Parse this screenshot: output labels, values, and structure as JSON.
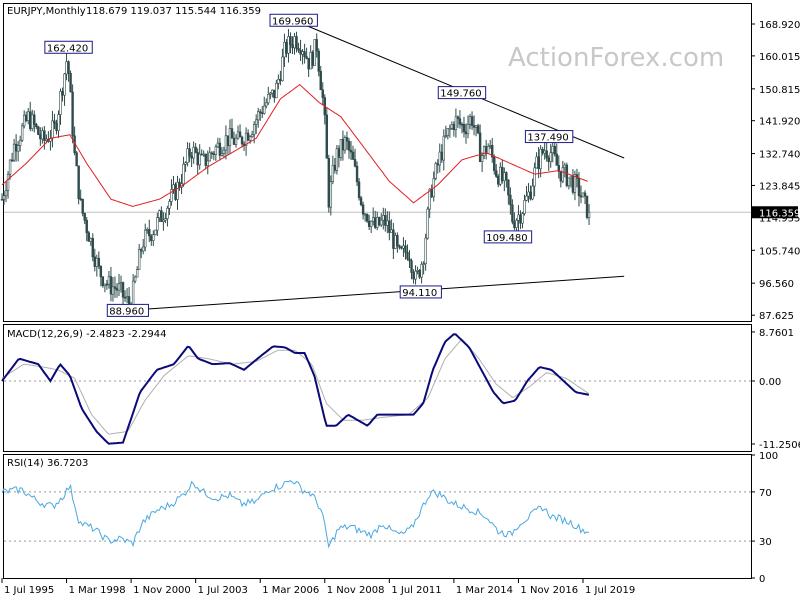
{
  "header": {
    "symbol": "EURJPY,Monthly",
    "ohlc": "118.679 119.037 115.544 116.359"
  },
  "watermark": "ActionForex.com",
  "colors": {
    "candle": "#2e4a4a",
    "ma": "#e02020",
    "macd": "#0a0a78",
    "signal": "#b0b0b0",
    "rsi": "#4aa8e0",
    "trendline": "#000000"
  },
  "chart_data": [
    {
      "type": "candlestick",
      "title": "EURJPY,Monthly",
      "x_start": 1995.5,
      "x_step_months": 1,
      "ylim": [
        86.0,
        174.5
      ],
      "y_ticks": [
        "168.920",
        "160.015",
        "150.815",
        "141.920",
        "132.740",
        "123.845",
        "114.935",
        "105.740",
        "96.560",
        "87.625"
      ],
      "y_tick_values": [
        168.92,
        160.015,
        150.815,
        141.92,
        132.74,
        123.845,
        114.935,
        105.74,
        96.56,
        87.625
      ],
      "last_price": "116.359",
      "last_price_value": 116.359,
      "x_ticks": [
        "1 Jul 1995",
        "1 Mar 1998",
        "1 Nov 2000",
        "1 Jul 2003",
        "1 Mar 2006",
        "1 Nov 2008",
        "1 Jul 2011",
        "1 Mar 2014",
        "1 Nov 2016",
        "1 Jul 2019"
      ],
      "x_tick_values": [
        1995.5,
        1998.167,
        2000.833,
        2003.5,
        2006.167,
        2008.833,
        2011.5,
        2014.167,
        2016.833,
        2019.5
      ],
      "price_anchors": [
        [
          1995.5,
          120
        ],
        [
          1996.0,
          135
        ],
        [
          1996.6,
          143
        ],
        [
          1997.2,
          136
        ],
        [
          1997.7,
          140
        ],
        [
          1998.0,
          152
        ],
        [
          1998.2,
          160
        ],
        [
          1998.5,
          132
        ],
        [
          1998.75,
          118
        ],
        [
          1999.1,
          110
        ],
        [
          1999.5,
          100
        ],
        [
          1999.9,
          96
        ],
        [
          2000.3,
          95
        ],
        [
          2000.8,
          90
        ],
        [
          2001.3,
          108
        ],
        [
          2001.8,
          112
        ],
        [
          2002.3,
          118
        ],
        [
          2002.8,
          124
        ],
        [
          2003.3,
          134
        ],
        [
          2003.8,
          130
        ],
        [
          2004.3,
          134
        ],
        [
          2004.8,
          137
        ],
        [
          2005.3,
          136
        ],
        [
          2005.8,
          140
        ],
        [
          2006.3,
          146
        ],
        [
          2006.8,
          150
        ],
        [
          2007.2,
          162
        ],
        [
          2007.6,
          165
        ],
        [
          2007.9,
          163
        ],
        [
          2008.2,
          158
        ],
        [
          2008.5,
          163
        ],
        [
          2008.8,
          145
        ],
        [
          2009.0,
          120
        ],
        [
          2009.3,
          132
        ],
        [
          2009.7,
          136
        ],
        [
          2010.0,
          130
        ],
        [
          2010.4,
          118
        ],
        [
          2010.9,
          112
        ],
        [
          2011.3,
          114
        ],
        [
          2011.6,
          110
        ],
        [
          2011.9,
          104
        ],
        [
          2012.3,
          106
        ],
        [
          2012.6,
          97
        ],
        [
          2012.9,
          104
        ],
        [
          2013.2,
          122
        ],
        [
          2013.6,
          132
        ],
        [
          2013.9,
          138
        ],
        [
          2014.2,
          142
        ],
        [
          2014.6,
          140
        ],
        [
          2014.9,
          143
        ],
        [
          2015.3,
          132
        ],
        [
          2015.6,
          135
        ],
        [
          2015.9,
          128
        ],
        [
          2016.3,
          124
        ],
        [
          2016.6,
          114
        ],
        [
          2016.9,
          116
        ],
        [
          2017.3,
          122
        ],
        [
          2017.6,
          130
        ],
        [
          2017.9,
          134
        ],
        [
          2018.2,
          133
        ],
        [
          2018.5,
          128
        ],
        [
          2018.9,
          126
        ],
        [
          2019.3,
          123
        ],
        [
          2019.6,
          118
        ],
        [
          2019.75,
          116.359
        ]
      ],
      "ma_anchors": [
        [
          1995.5,
          124
        ],
        [
          1996.5,
          130
        ],
        [
          1997.5,
          137
        ],
        [
          1998.3,
          138
        ],
        [
          1999.0,
          130
        ],
        [
          2000.0,
          120
        ],
        [
          2000.9,
          118
        ],
        [
          2002.0,
          120
        ],
        [
          2003.0,
          124
        ],
        [
          2004.0,
          129
        ],
        [
          2005.0,
          133
        ],
        [
          2006.0,
          137
        ],
        [
          2007.0,
          148
        ],
        [
          2007.8,
          152
        ],
        [
          2008.6,
          147
        ],
        [
          2009.5,
          143
        ],
        [
          2010.5,
          134
        ],
        [
          2011.5,
          125
        ],
        [
          2012.5,
          119
        ],
        [
          2013.5,
          124
        ],
        [
          2014.5,
          131
        ],
        [
          2015.5,
          133
        ],
        [
          2016.5,
          130
        ],
        [
          2017.5,
          127
        ],
        [
          2018.5,
          128
        ],
        [
          2019.7,
          125
        ]
      ],
      "annotations": [
        {
          "label": "169.960",
          "x": 2007.55,
          "y": 169.96
        },
        {
          "label": "162.420",
          "x": 1998.25,
          "y": 162.42
        },
        {
          "label": "149.760",
          "x": 2014.5,
          "y": 149.76
        },
        {
          "label": "137.490",
          "x": 2018.1,
          "y": 137.49
        },
        {
          "label": "109.480",
          "x": 2016.4,
          "y": 109.48
        },
        {
          "label": "94.110",
          "x": 2012.8,
          "y": 94.11
        },
        {
          "label": "88.960",
          "x": 2000.7,
          "y": 88.96
        }
      ],
      "trendlines": [
        {
          "name": "upper",
          "from": [
            2007.55,
            169.96
          ],
          "to": [
            2021.2,
            131.5
          ]
        },
        {
          "name": "lower",
          "from": [
            2000.7,
            88.96
          ],
          "to": [
            2021.2,
            98.5
          ]
        }
      ]
    },
    {
      "type": "line",
      "title": "MACD(12,26,9) -2.4823 -2.2944",
      "ylim": [
        -12.5,
        10.0
      ],
      "y_ticks": [
        "8.7601",
        "0.00",
        "-11.2506"
      ],
      "y_tick_values": [
        8.7601,
        0.0,
        -11.2506
      ],
      "zero_line": 0,
      "series": [
        {
          "values_at": [
            [
              1995.5,
              0
            ],
            [
              1996.2,
              4
            ],
            [
              1997.0,
              3
            ],
            [
              1997.5,
              0
            ],
            [
              1997.9,
              3
            ],
            [
              1998.3,
              1
            ],
            [
              1998.8,
              -5
            ],
            [
              1999.4,
              -9
            ],
            [
              1999.9,
              -11.2
            ],
            [
              2000.5,
              -11
            ],
            [
              2001.2,
              -2
            ],
            [
              2001.9,
              2
            ],
            [
              2002.6,
              3
            ],
            [
              2003.2,
              6.3
            ],
            [
              2003.6,
              4
            ],
            [
              2004.2,
              3
            ],
            [
              2004.9,
              3.2
            ],
            [
              2005.5,
              2
            ],
            [
              2006.2,
              4.5
            ],
            [
              2006.7,
              6.2
            ],
            [
              2007.2,
              6
            ],
            [
              2007.6,
              5
            ],
            [
              2008.0,
              5
            ],
            [
              2008.4,
              1
            ],
            [
              2008.9,
              -8
            ],
            [
              2009.3,
              -8
            ],
            [
              2009.8,
              -6
            ],
            [
              2010.2,
              -7
            ],
            [
              2010.6,
              -8
            ],
            [
              2011.0,
              -6
            ],
            [
              2011.5,
              -6
            ],
            [
              2012.0,
              -6
            ],
            [
              2012.5,
              -6
            ],
            [
              2012.9,
              -4
            ],
            [
              2013.3,
              2
            ],
            [
              2013.8,
              7
            ],
            [
              2014.2,
              8.5
            ],
            [
              2014.8,
              6
            ],
            [
              2015.3,
              2
            ],
            [
              2015.8,
              -2
            ],
            [
              2016.2,
              -4
            ],
            [
              2016.7,
              -3.5
            ],
            [
              2017.2,
              0
            ],
            [
              2017.7,
              2.5
            ],
            [
              2018.2,
              2
            ],
            [
              2018.7,
              0
            ],
            [
              2019.2,
              -2
            ],
            [
              2019.75,
              -2.4823
            ]
          ]
        },
        {
          "values_at": [
            [
              1995.5,
              0.5
            ],
            [
              1996.4,
              3
            ],
            [
              1997.2,
              2.5
            ],
            [
              1997.8,
              2
            ],
            [
              1998.5,
              0.5
            ],
            [
              1999.2,
              -6
            ],
            [
              1999.9,
              -9.5
            ],
            [
              2000.7,
              -9
            ],
            [
              2001.4,
              -3.5
            ],
            [
              2002.2,
              1
            ],
            [
              2003.2,
              4.5
            ],
            [
              2004.0,
              4
            ],
            [
              2005.0,
              3
            ],
            [
              2006.0,
              3.5
            ],
            [
              2006.9,
              5.5
            ],
            [
              2007.6,
              5.5
            ],
            [
              2008.3,
              3
            ],
            [
              2008.9,
              -4
            ],
            [
              2009.6,
              -7
            ],
            [
              2010.4,
              -7
            ],
            [
              2011.2,
              -6.5
            ],
            [
              2012.3,
              -6
            ],
            [
              2013.1,
              -3
            ],
            [
              2013.8,
              4
            ],
            [
              2014.5,
              7.5
            ],
            [
              2015.2,
              4
            ],
            [
              2015.9,
              -0.5
            ],
            [
              2016.6,
              -3
            ],
            [
              2017.3,
              -1
            ],
            [
              2018.0,
              1.5
            ],
            [
              2018.8,
              0.5
            ],
            [
              2019.75,
              -2.2944
            ]
          ]
        }
      ]
    },
    {
      "type": "line",
      "title": "RSI(14) 36.7203",
      "ylim": [
        0,
        100
      ],
      "y_ticks": [
        "100",
        "70",
        "30",
        "0"
      ],
      "y_tick_values": [
        100,
        70,
        30,
        0
      ],
      "levels": [
        70,
        30
      ],
      "series": [
        {
          "values_at": [
            [
              1995.5,
              70
            ],
            [
              1996.3,
              72
            ],
            [
              1997.0,
              62
            ],
            [
              1997.6,
              58
            ],
            [
              1998.0,
              66
            ],
            [
              1998.3,
              75
            ],
            [
              1998.7,
              45
            ],
            [
              1999.3,
              40
            ],
            [
              1999.9,
              30
            ],
            [
              2000.4,
              32
            ],
            [
              2000.9,
              28
            ],
            [
              2001.3,
              45
            ],
            [
              2001.9,
              55
            ],
            [
              2002.5,
              60
            ],
            [
              2003.0,
              68
            ],
            [
              2003.4,
              78
            ],
            [
              2003.8,
              70
            ],
            [
              2004.3,
              65
            ],
            [
              2004.9,
              67
            ],
            [
              2005.4,
              60
            ],
            [
              2006.0,
              62
            ],
            [
              2006.5,
              72
            ],
            [
              2007.0,
              75
            ],
            [
              2007.5,
              80
            ],
            [
              2007.9,
              72
            ],
            [
              2008.3,
              68
            ],
            [
              2008.7,
              55
            ],
            [
              2009.0,
              25
            ],
            [
              2009.4,
              40
            ],
            [
              2009.9,
              42
            ],
            [
              2010.3,
              38
            ],
            [
              2010.8,
              35
            ],
            [
              2011.2,
              45
            ],
            [
              2011.6,
              38
            ],
            [
              2012.0,
              35
            ],
            [
              2012.4,
              40
            ],
            [
              2012.8,
              55
            ],
            [
              2013.2,
              70
            ],
            [
              2013.6,
              68
            ],
            [
              2014.0,
              62
            ],
            [
              2014.5,
              58
            ],
            [
              2015.0,
              55
            ],
            [
              2015.5,
              50
            ],
            [
              2016.0,
              38
            ],
            [
              2016.5,
              35
            ],
            [
              2016.9,
              45
            ],
            [
              2017.3,
              50
            ],
            [
              2017.8,
              58
            ],
            [
              2018.2,
              50
            ],
            [
              2018.6,
              48
            ],
            [
              2019.0,
              45
            ],
            [
              2019.4,
              40
            ],
            [
              2019.75,
              36.7203
            ]
          ]
        }
      ]
    }
  ]
}
